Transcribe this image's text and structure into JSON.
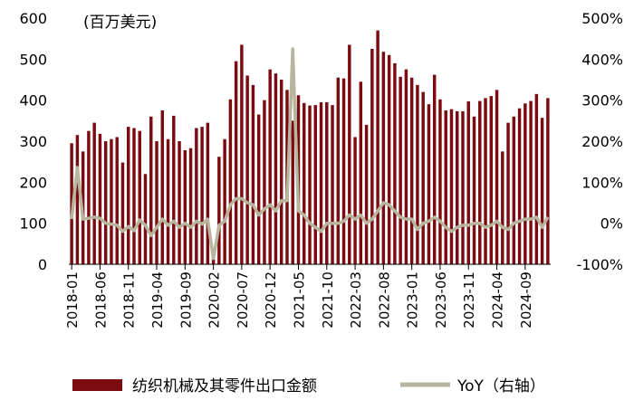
{
  "chart_data": {
    "type": "bar",
    "unit_label": "(百万美元)",
    "colors": {
      "bars": "#7B0B10",
      "line": "#B8B59E"
    },
    "left_axis": {
      "ylim": [
        0,
        600
      ],
      "ticks": [
        "0",
        "100",
        "200",
        "300",
        "400",
        "500",
        "600"
      ],
      "tick_values": [
        0,
        100,
        200,
        300,
        400,
        500,
        600
      ]
    },
    "right_axis": {
      "ylim": [
        -100,
        500
      ],
      "ticks": [
        "-100%",
        "0%",
        "100%",
        "200%",
        "300%",
        "400%",
        "500%"
      ],
      "tick_values": [
        -100,
        0,
        100,
        200,
        300,
        400,
        500
      ]
    },
    "x_tick_labels": [
      "2018-01",
      "2018-06",
      "2018-11",
      "2019-04",
      "2019-09",
      "2020-02",
      "2020-07",
      "2020-12",
      "2021-05",
      "2021-10",
      "2022-03",
      "2022-08",
      "2023-01",
      "2023-06",
      "2023-11",
      "2024-04",
      "2024-09"
    ],
    "x_tick_every": 5,
    "series": [
      {
        "name": "纺织机械及其零件出口金额",
        "type": "bar",
        "axis": "left",
        "values": [
          295,
          315,
          275,
          325,
          345,
          318,
          300,
          305,
          310,
          248,
          335,
          332,
          325,
          220,
          360,
          300,
          375,
          305,
          362,
          300,
          278,
          283,
          332,
          335,
          345,
          30,
          262,
          305,
          402,
          495,
          535,
          460,
          437,
          365,
          400,
          475,
          465,
          450,
          425,
          350,
          412,
          393,
          387,
          388,
          395,
          395,
          388,
          455,
          453,
          535,
          310,
          445,
          340,
          525,
          570,
          518,
          510,
          490,
          457,
          475,
          455,
          437,
          420,
          390,
          462,
          402,
          375,
          378,
          373,
          373,
          397,
          360,
          398,
          405,
          410,
          425,
          275,
          345,
          360,
          380,
          392,
          398,
          415,
          357,
          405
        ]
      },
      {
        "name": "YoY（右轴）",
        "type": "line",
        "axis": "right",
        "values": [
          10,
          136,
          10,
          12,
          15,
          12,
          0,
          -2,
          -5,
          -20,
          -8,
          -18,
          8,
          -5,
          -30,
          -10,
          10,
          -5,
          5,
          -10,
          0,
          -10,
          5,
          -2,
          10,
          -86,
          -5,
          5,
          45,
          60,
          60,
          50,
          45,
          20,
          35,
          45,
          30,
          55,
          55,
          425,
          30,
          20,
          0,
          -10,
          -20,
          0,
          0,
          0,
          5,
          20,
          10,
          20,
          0,
          10,
          30,
          50,
          45,
          30,
          15,
          10,
          10,
          -15,
          0,
          5,
          15,
          5,
          -10,
          -20,
          -10,
          -5,
          -5,
          0,
          0,
          -10,
          -5,
          5,
          -10,
          -15,
          0,
          5,
          10,
          10,
          15,
          -10,
          15
        ]
      }
    ]
  }
}
